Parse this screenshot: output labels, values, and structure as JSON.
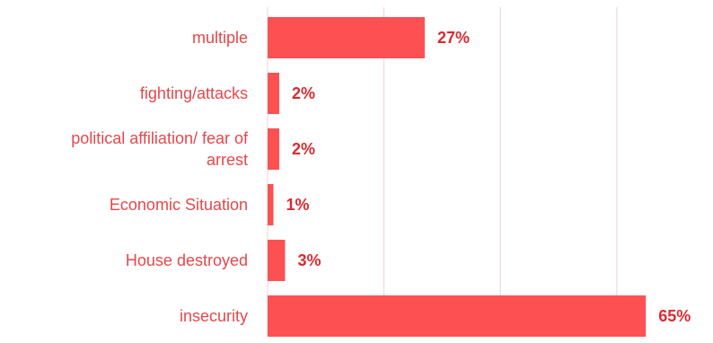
{
  "chart_data": {
    "type": "bar",
    "orientation": "horizontal",
    "categories": [
      "multiple",
      "fighting/attacks",
      "political affiliation/ fear of arrest",
      "Economic Situation",
      "House destroyed",
      "insecurity"
    ],
    "category_lines": [
      [
        "multiple"
      ],
      [
        "fighting/attacks"
      ],
      [
        "political affiliation/ fear of",
        "arrest"
      ],
      [
        "Economic Situation"
      ],
      [
        "House destroyed"
      ],
      [
        "insecurity"
      ]
    ],
    "values": [
      27,
      2,
      2,
      1,
      3,
      65
    ],
    "value_labels": [
      "27%",
      "2%",
      "2%",
      "1%",
      "3%",
      "65%"
    ],
    "xlim": [
      0,
      70
    ],
    "x_gridlines": [
      0,
      20,
      40,
      60
    ],
    "grid": true,
    "legend": "none",
    "title": "",
    "xlabel": "",
    "ylabel": "",
    "colors": {
      "bar": "#fd5052",
      "label": "#e5474b",
      "value_label": "#d92b31",
      "grid": "#f2cfcf"
    }
  }
}
